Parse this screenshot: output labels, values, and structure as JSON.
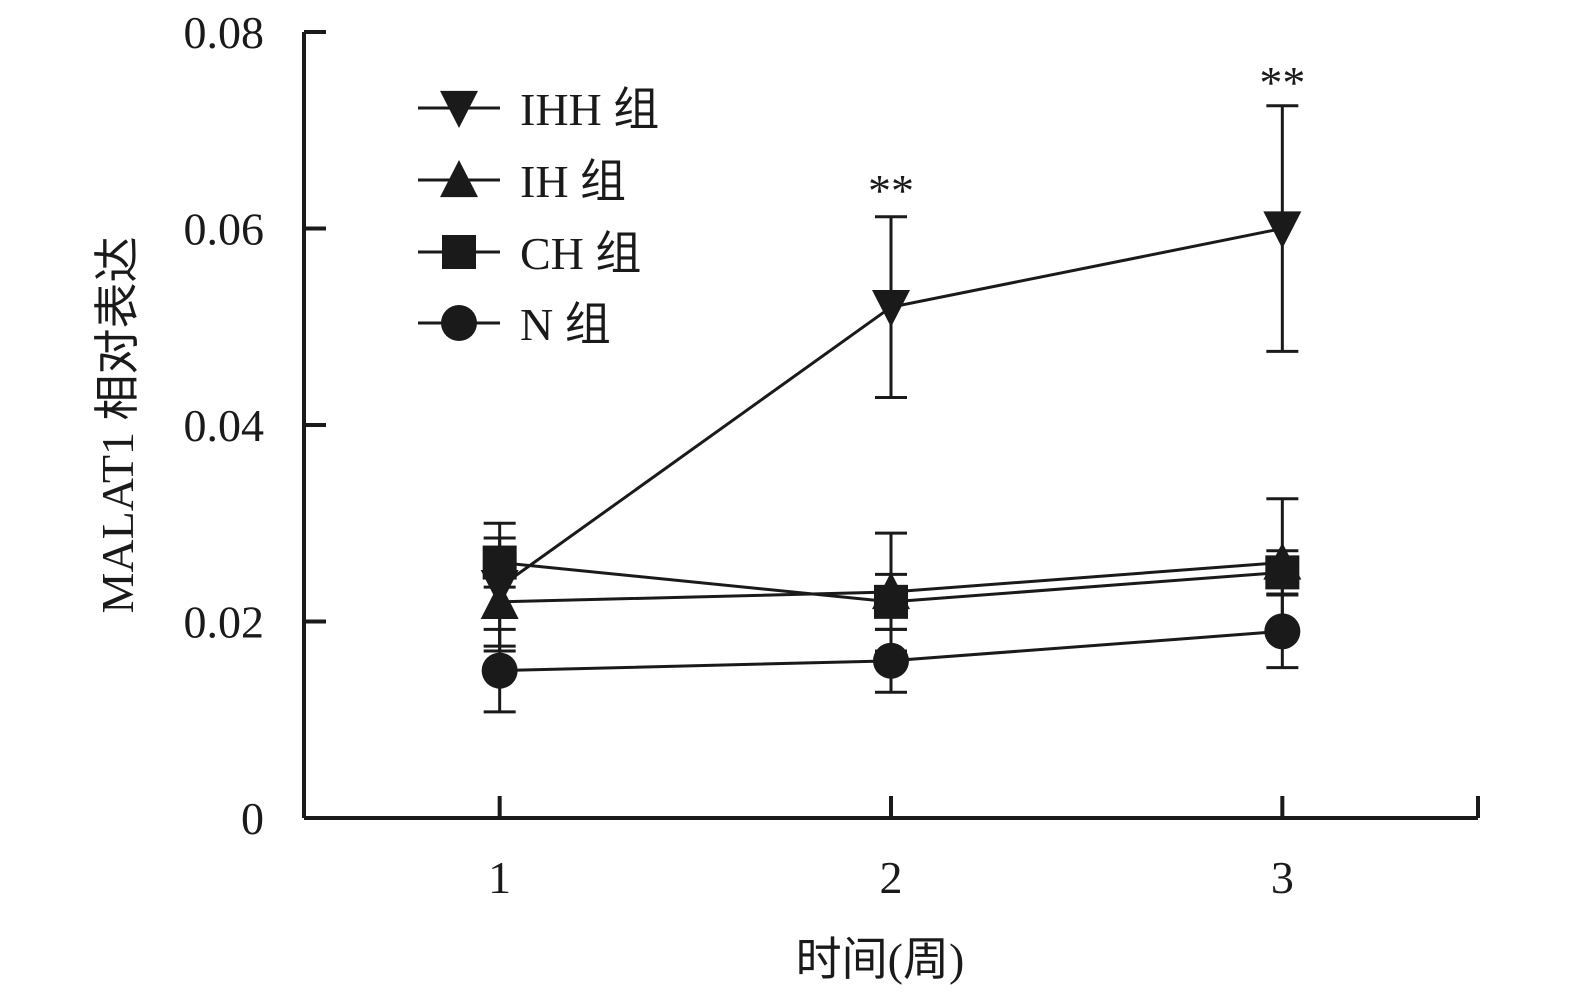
{
  "chart_data": {
    "type": "line",
    "xlabel": "时间(周)",
    "ylabel": "MALAT1 相对表达",
    "x": [
      1,
      2,
      3
    ],
    "x_tick_labels": [
      "1",
      "2",
      "3"
    ],
    "xlim": [
      0.5,
      3.5
    ],
    "ylim": [
      0,
      0.08
    ],
    "y_ticks": [
      0,
      0.02,
      0.04,
      0.06,
      0.08
    ],
    "y_tick_labels": [
      "0",
      "0.02",
      "0.04",
      "0.06",
      "0.08"
    ],
    "grid": false,
    "legend_position": "top-left",
    "series": [
      {
        "name": "IHH 组",
        "marker": "triangle-down",
        "values": [
          0.0235,
          0.052,
          0.06
        ],
        "errors": [
          0.0065,
          0.0092,
          0.0125
        ]
      },
      {
        "name": "IH 组",
        "marker": "triangle-up",
        "values": [
          0.022,
          0.023,
          0.026
        ],
        "errors": [
          0.0045,
          0.006,
          0.0065
        ]
      },
      {
        "name": "CH 组",
        "marker": "square",
        "values": [
          0.026,
          0.022,
          0.025
        ],
        "errors": [
          0.0025,
          0.0028,
          0.0022
        ]
      },
      {
        "name": "N 组",
        "marker": "circle",
        "values": [
          0.015,
          0.016,
          0.019
        ],
        "errors": [
          0.0042,
          0.0032,
          0.0037
        ]
      }
    ],
    "annotations": [
      {
        "x": 2,
        "y": 0.0635,
        "text": "**"
      },
      {
        "x": 3,
        "y": 0.0745,
        "text": "**"
      }
    ],
    "colors": {
      "line": "#1a1a1a",
      "marker": "#1a1a1a"
    }
  }
}
